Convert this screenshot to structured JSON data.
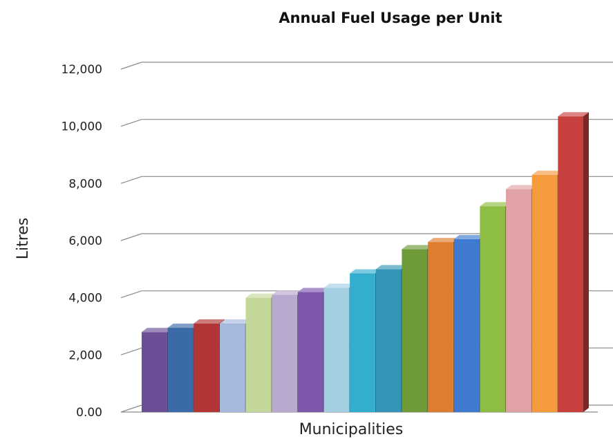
{
  "chart_data": {
    "type": "bar",
    "title": "Annual Fuel Usage per Unit",
    "xlabel": "Municipalities",
    "ylabel": "Litres",
    "ylim": [
      0,
      12000
    ],
    "yticks": [
      "0.00",
      "2,000",
      "4,000",
      "6,000",
      "8,000",
      "10,000",
      "12,000"
    ],
    "grid": true,
    "style": "3d-columns",
    "values": [
      2800,
      2950,
      3100,
      3100,
      4000,
      4100,
      4200,
      4350,
      4850,
      5000,
      5700,
      5950,
      6050,
      7200,
      7800,
      8300,
      10350
    ],
    "colors": [
      "#6a4f96",
      "#3a6aa8",
      "#b23636",
      "#a6b9dd",
      "#c3d79a",
      "#b8a9cf",
      "#7e58ad",
      "#a4cfe2",
      "#34aece",
      "#3496b6",
      "#6e9a38",
      "#e07c2e",
      "#3d7ad0",
      "#8ebd43",
      "#e1a2a6",
      "#f69a3e",
      "#c8413e"
    ]
  }
}
